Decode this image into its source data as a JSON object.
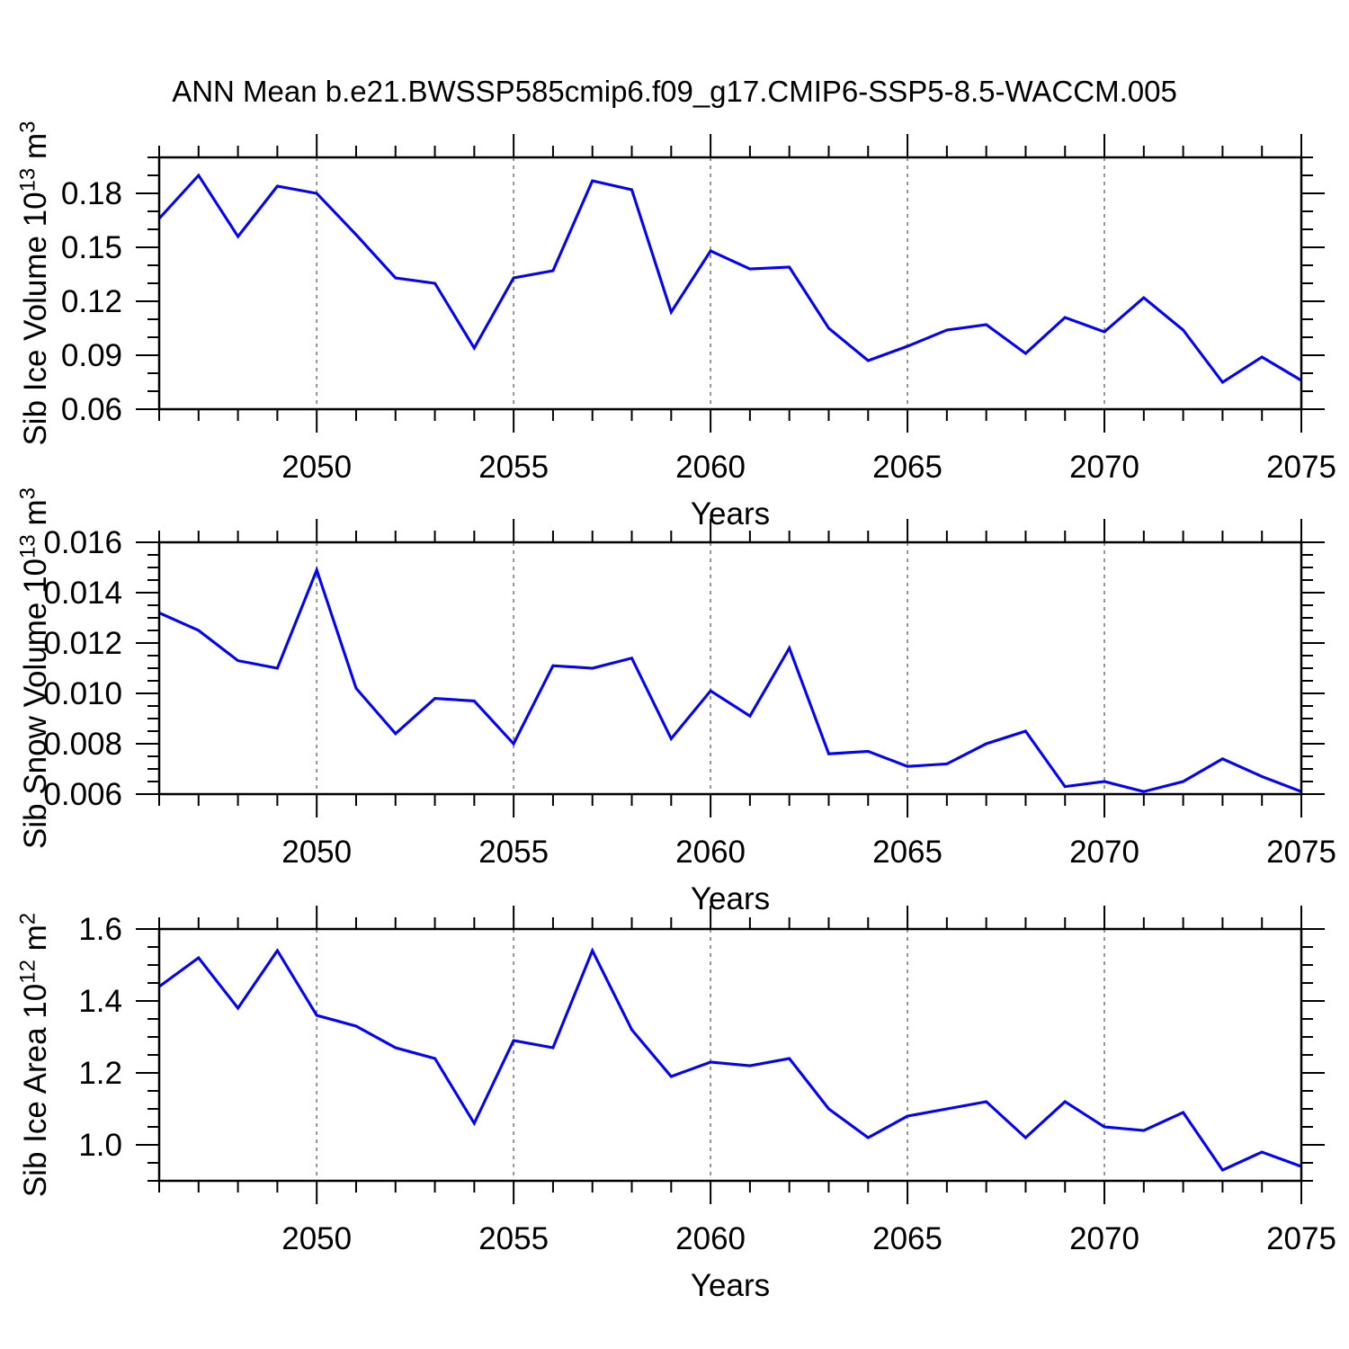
{
  "title": "ANN Mean b.e21.BWSSP585cmip6.f09_g17.CMIP6-SSP5-8.5-WACCM.005",
  "colors": {
    "line": "#0000ff",
    "frame": "#000000",
    "grid": "#848484",
    "text": "#000000",
    "background": "#ffffff"
  },
  "chart_data": [
    {
      "type": "line",
      "name": "sib-ice-volume",
      "title": "",
      "xlabel": "Years",
      "ylabel": "Sib Ice Volume 10^13 m^3",
      "ylabel_parts": [
        {
          "t": "Sib Ice Volume 10",
          "sup": false
        },
        {
          "t": "13",
          "sup": true
        },
        {
          "t": " m",
          "sup": false
        },
        {
          "t": "3",
          "sup": true
        }
      ],
      "x": [
        2046,
        2047,
        2048,
        2049,
        2050,
        2051,
        2052,
        2053,
        2054,
        2055,
        2056,
        2057,
        2058,
        2059,
        2060,
        2061,
        2062,
        2063,
        2064,
        2065,
        2066,
        2067,
        2068,
        2069,
        2070,
        2071,
        2072,
        2073,
        2074,
        2075
      ],
      "values": [
        0.166,
        0.19,
        0.156,
        0.184,
        0.18,
        0.157,
        0.133,
        0.13,
        0.094,
        0.133,
        0.137,
        0.187,
        0.182,
        0.114,
        0.148,
        0.138,
        0.139,
        0.105,
        0.087,
        0.095,
        0.104,
        0.107,
        0.091,
        0.111,
        0.103,
        0.122,
        0.104,
        0.075,
        0.089,
        0.076
      ],
      "xlim": [
        2046,
        2075
      ],
      "ylim": [
        0.06,
        0.2
      ],
      "xticks": [
        2050,
        2055,
        2060,
        2065,
        2070,
        2075
      ],
      "xtick_labels": [
        "2050",
        "2055",
        "2060",
        "2065",
        "2070",
        "2075"
      ],
      "xtick_minor_step": 1,
      "yticks": [
        0.06,
        0.09,
        0.12,
        0.15,
        0.18
      ],
      "ytick_labels": [
        "0.06",
        "0.09",
        "0.12",
        "0.15",
        "0.18"
      ],
      "ytick_minor_step": 0.01,
      "gridlines_x": [
        2050,
        2055,
        2060,
        2065,
        2070
      ],
      "grid_on": true,
      "legend": "none"
    },
    {
      "type": "line",
      "name": "sib-snow-volume",
      "title": "",
      "xlabel": "Years",
      "ylabel": "Sib Snow Volume 10^13 m^3",
      "ylabel_parts": [
        {
          "t": "Sib Snow Volume 10",
          "sup": false
        },
        {
          "t": "13",
          "sup": true
        },
        {
          "t": " m",
          "sup": false
        },
        {
          "t": "3",
          "sup": true
        }
      ],
      "x": [
        2046,
        2047,
        2048,
        2049,
        2050,
        2051,
        2052,
        2053,
        2054,
        2055,
        2056,
        2057,
        2058,
        2059,
        2060,
        2061,
        2062,
        2063,
        2064,
        2065,
        2066,
        2067,
        2068,
        2069,
        2070,
        2071,
        2072,
        2073,
        2074,
        2075
      ],
      "values": [
        0.0132,
        0.0125,
        0.0113,
        0.011,
        0.0149,
        0.0102,
        0.0084,
        0.0098,
        0.0097,
        0.008,
        0.0111,
        0.011,
        0.0114,
        0.0082,
        0.0101,
        0.0091,
        0.0118,
        0.0076,
        0.0077,
        0.0071,
        0.0072,
        0.008,
        0.0085,
        0.0063,
        0.0065,
        0.0061,
        0.0065,
        0.0074,
        0.0067,
        0.0061
      ],
      "xlim": [
        2046,
        2075
      ],
      "ylim": [
        0.006,
        0.016
      ],
      "xticks": [
        2050,
        2055,
        2060,
        2065,
        2070,
        2075
      ],
      "xtick_labels": [
        "2050",
        "2055",
        "2060",
        "2065",
        "2070",
        "2075"
      ],
      "xtick_minor_step": 1,
      "yticks": [
        0.006,
        0.008,
        0.01,
        0.012,
        0.014,
        0.016
      ],
      "ytick_labels": [
        "0.006",
        "0.008",
        "0.010",
        "0.012",
        "0.014",
        "0.016"
      ],
      "ytick_minor_step": 0.0005,
      "gridlines_x": [
        2050,
        2055,
        2060,
        2065,
        2070
      ],
      "grid_on": true,
      "legend": "none"
    },
    {
      "type": "line",
      "name": "sib-ice-area",
      "title": "",
      "xlabel": "Years",
      "ylabel": "Sib Ice Area 10^12 m^2",
      "ylabel_parts": [
        {
          "t": "Sib Ice Area 10",
          "sup": false
        },
        {
          "t": "12",
          "sup": true
        },
        {
          "t": " m",
          "sup": false
        },
        {
          "t": "2",
          "sup": true
        }
      ],
      "x": [
        2046,
        2047,
        2048,
        2049,
        2050,
        2051,
        2052,
        2053,
        2054,
        2055,
        2056,
        2057,
        2058,
        2059,
        2060,
        2061,
        2062,
        2063,
        2064,
        2065,
        2066,
        2067,
        2068,
        2069,
        2070,
        2071,
        2072,
        2073,
        2074,
        2075
      ],
      "values": [
        1.44,
        1.52,
        1.38,
        1.54,
        1.36,
        1.33,
        1.27,
        1.24,
        1.06,
        1.29,
        1.27,
        1.54,
        1.32,
        1.19,
        1.23,
        1.22,
        1.24,
        1.1,
        1.02,
        1.08,
        1.1,
        1.12,
        1.02,
        1.12,
        1.05,
        1.04,
        1.09,
        0.93,
        0.98,
        0.94
      ],
      "xlim": [
        2046,
        2075
      ],
      "ylim": [
        0.9,
        1.6
      ],
      "xticks": [
        2050,
        2055,
        2060,
        2065,
        2070,
        2075
      ],
      "xtick_labels": [
        "2050",
        "2055",
        "2060",
        "2065",
        "2070",
        "2075"
      ],
      "xtick_minor_step": 1,
      "yticks": [
        1.0,
        1.2,
        1.4,
        1.6
      ],
      "ytick_labels": [
        "1.0",
        "1.2",
        "1.4",
        "1.6"
      ],
      "ytick_minor_step": 0.05,
      "gridlines_x": [
        2050,
        2055,
        2060,
        2065,
        2070
      ],
      "grid_on": true,
      "legend": "none"
    }
  ]
}
